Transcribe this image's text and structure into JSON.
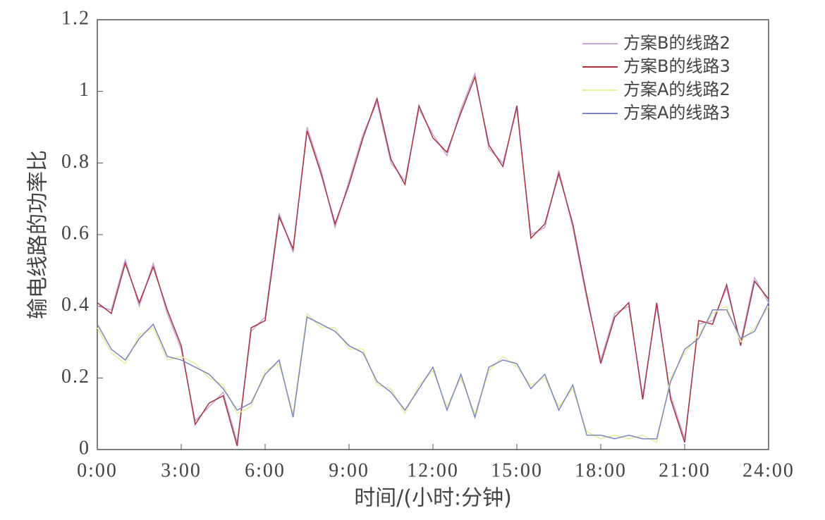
{
  "chart_data": {
    "type": "line",
    "xlabel": "时间/(小时:分钟)",
    "ylabel": "输电线路的功率比",
    "xlim": [
      0,
      24
    ],
    "ylim": [
      0,
      1.2
    ],
    "xticks": [
      {
        "value": 0,
        "label": "0:00"
      },
      {
        "value": 3,
        "label": "3:00"
      },
      {
        "value": 6,
        "label": "6:00"
      },
      {
        "value": 9,
        "label": "9:00"
      },
      {
        "value": 12,
        "label": "12:00"
      },
      {
        "value": 15,
        "label": "15:00"
      },
      {
        "value": 18,
        "label": "18:00"
      },
      {
        "value": 21,
        "label": "21:00"
      },
      {
        "value": 24,
        "label": "24:00"
      }
    ],
    "yticks": [
      0,
      0.2,
      0.4,
      0.6,
      0.8,
      1,
      1.2
    ],
    "grid": false,
    "legend": "upper right",
    "x": [
      0,
      0.5,
      1,
      1.5,
      2,
      2.5,
      3,
      3.5,
      4,
      4.5,
      5,
      5.5,
      6,
      6.5,
      7,
      7.5,
      8,
      8.5,
      9,
      9.5,
      10,
      10.5,
      11,
      11.5,
      12,
      12.5,
      13,
      13.5,
      14,
      14.5,
      15,
      15.5,
      16,
      16.5,
      17,
      17.5,
      18,
      18.5,
      19,
      19.5,
      20,
      20.5,
      21,
      21.5,
      22,
      22.5,
      23,
      23.5,
      24
    ],
    "series": [
      {
        "name": "方案B的线路2",
        "color": "#c9a6d6",
        "values": [
          0.4,
          0.39,
          0.53,
          0.4,
          0.52,
          0.38,
          0.28,
          0.08,
          0.12,
          0.16,
          0.02,
          0.33,
          0.37,
          0.66,
          0.55,
          0.9,
          0.78,
          0.62,
          0.75,
          0.88,
          0.97,
          0.8,
          0.75,
          0.95,
          0.88,
          0.82,
          0.95,
          1.05,
          0.84,
          0.8,
          0.95,
          0.6,
          0.62,
          0.78,
          0.62,
          0.42,
          0.25,
          0.38,
          0.4,
          0.15,
          0.4,
          0.15,
          0.03,
          0.35,
          0.36,
          0.45,
          0.3,
          0.48,
          0.41
        ]
      },
      {
        "name": "方案B的线路3",
        "color": "#a8323e",
        "values": [
          0.41,
          0.38,
          0.52,
          0.41,
          0.51,
          0.39,
          0.29,
          0.07,
          0.13,
          0.15,
          0.01,
          0.34,
          0.36,
          0.65,
          0.56,
          0.89,
          0.77,
          0.63,
          0.74,
          0.87,
          0.98,
          0.81,
          0.74,
          0.96,
          0.87,
          0.83,
          0.94,
          1.04,
          0.85,
          0.79,
          0.96,
          0.59,
          0.63,
          0.77,
          0.63,
          0.43,
          0.24,
          0.37,
          0.41,
          0.14,
          0.41,
          0.14,
          0.02,
          0.36,
          0.35,
          0.46,
          0.29,
          0.47,
          0.42
        ]
      },
      {
        "name": "方案A的线路2",
        "color": "#e6ef9c",
        "values": [
          0.34,
          0.27,
          0.24,
          0.32,
          0.34,
          0.25,
          0.26,
          0.24,
          0.2,
          0.18,
          0.1,
          0.12,
          0.22,
          0.24,
          0.1,
          0.38,
          0.34,
          0.34,
          0.28,
          0.28,
          0.18,
          0.17,
          0.1,
          0.18,
          0.22,
          0.12,
          0.2,
          0.1,
          0.22,
          0.26,
          0.23,
          0.18,
          0.2,
          0.12,
          0.17,
          0.05,
          0.03,
          0.04,
          0.03,
          0.04,
          0.02,
          0.2,
          0.27,
          0.32,
          0.38,
          0.4,
          0.3,
          0.34,
          0.4
        ]
      },
      {
        "name": "方案A的线路3",
        "color": "#7b86c0",
        "values": [
          0.35,
          0.28,
          0.25,
          0.31,
          0.35,
          0.26,
          0.25,
          0.23,
          0.21,
          0.17,
          0.11,
          0.13,
          0.21,
          0.25,
          0.09,
          0.37,
          0.35,
          0.33,
          0.29,
          0.27,
          0.19,
          0.16,
          0.11,
          0.17,
          0.23,
          0.11,
          0.21,
          0.09,
          0.23,
          0.25,
          0.24,
          0.17,
          0.21,
          0.11,
          0.18,
          0.04,
          0.04,
          0.03,
          0.04,
          0.03,
          0.03,
          0.19,
          0.28,
          0.31,
          0.39,
          0.39,
          0.31,
          0.33,
          0.41
        ]
      }
    ]
  }
}
